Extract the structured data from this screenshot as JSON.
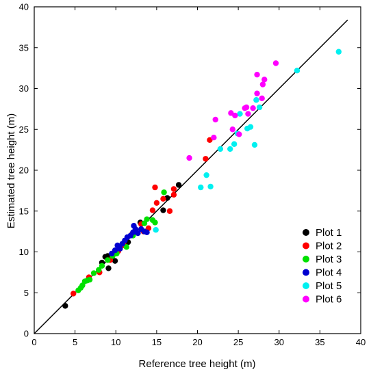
{
  "chart_data": {
    "type": "scatter",
    "title": "",
    "xlabel": "Reference tree height (m)",
    "ylabel": "Estimated tree height (m)",
    "xlim": [
      0,
      40
    ],
    "ylim": [
      0,
      40
    ],
    "xticks": [
      "0",
      "5",
      "10",
      "15",
      "20",
      "25",
      "30",
      "35",
      "40"
    ],
    "yticks": [
      "0",
      "5",
      "10",
      "15",
      "20",
      "25",
      "30",
      "35",
      "40"
    ],
    "grid": false,
    "legend_position": "bottom-right",
    "reference_line": {
      "slope": 1,
      "intercept": 0,
      "x_range": [
        0,
        38.4
      ],
      "color": "#000000"
    },
    "series": [
      {
        "name": "Plot 1",
        "color": "#000000",
        "points": [
          [
            3.8,
            3.4
          ],
          [
            8.3,
            8.7
          ],
          [
            8.7,
            9.4
          ],
          [
            9.0,
            9.5
          ],
          [
            9.1,
            8.0
          ],
          [
            9.5,
            9.2
          ],
          [
            9.9,
            8.9
          ],
          [
            10.5,
            10.4
          ],
          [
            11.5,
            11.2
          ],
          [
            13.0,
            13.6
          ],
          [
            13.7,
            12.5
          ],
          [
            15.8,
            15.1
          ],
          [
            16.3,
            16.6
          ],
          [
            17.7,
            18.2
          ]
        ]
      },
      {
        "name": "Plot 2",
        "color": "#ff0000",
        "points": [
          [
            4.8,
            4.9
          ],
          [
            6.7,
            6.9
          ],
          [
            8.0,
            7.5
          ],
          [
            9.3,
            9.0
          ],
          [
            10.3,
            10.1
          ],
          [
            11.0,
            10.8
          ],
          [
            12.0,
            12.2
          ],
          [
            12.5,
            12.4
          ],
          [
            13.1,
            13.4
          ],
          [
            13.4,
            12.5
          ],
          [
            14.0,
            12.9
          ],
          [
            14.5,
            15.1
          ],
          [
            14.8,
            17.9
          ],
          [
            15.0,
            16.0
          ],
          [
            15.8,
            16.5
          ],
          [
            16.6,
            15.0
          ],
          [
            17.1,
            17.7
          ],
          [
            17.1,
            17.0
          ],
          [
            21.0,
            21.4
          ],
          [
            21.5,
            23.7
          ]
        ]
      },
      {
        "name": "Plot 3",
        "color": "#00e000",
        "points": [
          [
            5.4,
            5.3
          ],
          [
            5.7,
            5.6
          ],
          [
            5.9,
            5.9
          ],
          [
            6.2,
            6.4
          ],
          [
            6.5,
            6.5
          ],
          [
            6.8,
            6.6
          ],
          [
            7.3,
            7.4
          ],
          [
            7.9,
            7.8
          ],
          [
            8.3,
            8.3
          ],
          [
            9.0,
            9.0
          ],
          [
            9.6,
            9.5
          ],
          [
            10.1,
            9.8
          ],
          [
            11.3,
            10.6
          ],
          [
            12.1,
            12.0
          ],
          [
            13.5,
            13.5
          ],
          [
            13.8,
            14.0
          ],
          [
            14.5,
            13.9
          ],
          [
            14.8,
            13.6
          ],
          [
            15.9,
            17.3
          ]
        ]
      },
      {
        "name": "Plot 4",
        "color": "#0000d0",
        "points": [
          [
            9.5,
            9.8
          ],
          [
            9.9,
            10.2
          ],
          [
            10.2,
            10.8
          ],
          [
            10.5,
            10.4
          ],
          [
            10.8,
            11.0
          ],
          [
            11.1,
            11.4
          ],
          [
            11.4,
            11.8
          ],
          [
            11.8,
            12.0
          ],
          [
            12.1,
            12.4
          ],
          [
            12.2,
            13.2
          ],
          [
            12.4,
            12.8
          ],
          [
            12.7,
            12.3
          ],
          [
            13.1,
            12.8
          ],
          [
            13.5,
            12.5
          ],
          [
            13.8,
            12.4
          ]
        ]
      },
      {
        "name": "Plot 5",
        "color": "#00f0f0",
        "points": [
          [
            14.9,
            12.7
          ],
          [
            20.4,
            17.9
          ],
          [
            21.1,
            19.4
          ],
          [
            21.6,
            18.0
          ],
          [
            22.8,
            22.6
          ],
          [
            24.0,
            22.6
          ],
          [
            24.5,
            23.2
          ],
          [
            24.9,
            24.5
          ],
          [
            25.2,
            26.9
          ],
          [
            26.1,
            25.1
          ],
          [
            26.5,
            25.3
          ],
          [
            27.0,
            23.1
          ],
          [
            27.2,
            28.6
          ],
          [
            27.6,
            27.7
          ],
          [
            32.2,
            32.2
          ],
          [
            37.3,
            34.5
          ]
        ]
      },
      {
        "name": "Plot 6",
        "color": "#ff00ff",
        "points": [
          [
            19.0,
            21.5
          ],
          [
            22.0,
            24.0
          ],
          [
            22.2,
            26.2
          ],
          [
            24.1,
            27.0
          ],
          [
            24.3,
            25.0
          ],
          [
            24.6,
            26.7
          ],
          [
            25.1,
            24.4
          ],
          [
            25.8,
            27.6
          ],
          [
            26.0,
            27.7
          ],
          [
            26.2,
            26.9
          ],
          [
            26.8,
            27.6
          ],
          [
            27.3,
            29.4
          ],
          [
            27.3,
            31.7
          ],
          [
            27.9,
            28.8
          ],
          [
            28.0,
            30.5
          ],
          [
            28.2,
            31.1
          ],
          [
            29.6,
            33.1
          ]
        ]
      }
    ]
  }
}
